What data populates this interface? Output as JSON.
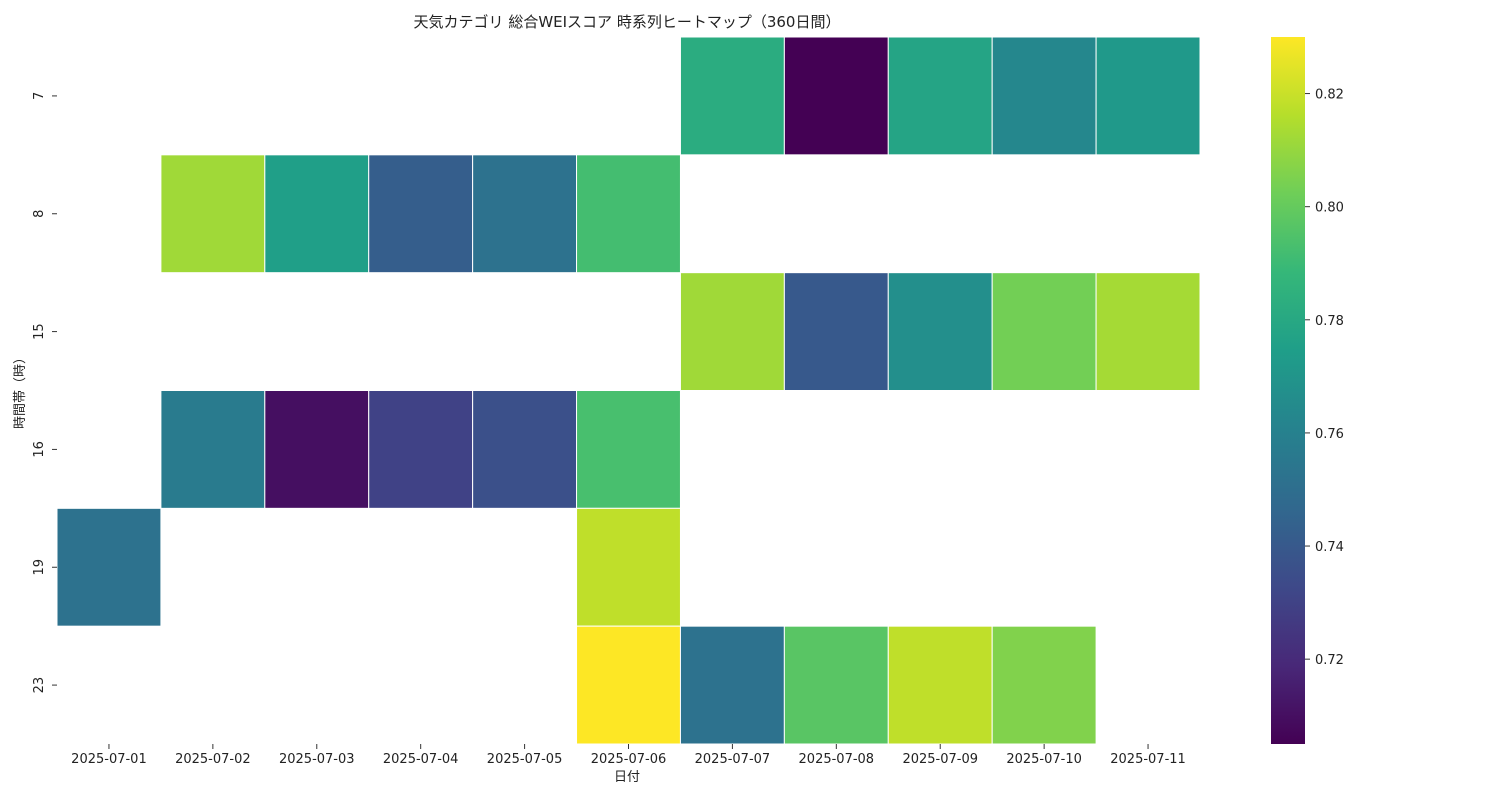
{
  "chart_data": {
    "type": "heatmap",
    "title": "天気カテゴリ 総合WEIスコア 時系列ヒートマップ（360日間）",
    "xlabel": "日付",
    "ylabel": "時間帯（時）",
    "x": [
      "2025-07-01",
      "2025-07-02",
      "2025-07-03",
      "2025-07-04",
      "2025-07-05",
      "2025-07-06",
      "2025-07-07",
      "2025-07-08",
      "2025-07-09",
      "2025-07-10",
      "2025-07-11"
    ],
    "y": [
      "7",
      "8",
      "15",
      "16",
      "19",
      "23"
    ],
    "values": [
      [
        null,
        null,
        null,
        null,
        null,
        null,
        0.782,
        0.705,
        0.778,
        0.763,
        0.772
      ],
      [
        null,
        0.812,
        0.775,
        0.742,
        0.752,
        0.792,
        null,
        null,
        null,
        null,
        null
      ],
      [
        null,
        null,
        null,
        null,
        null,
        null,
        0.812,
        0.74,
        0.767,
        0.803,
        0.813
      ],
      [
        null,
        0.757,
        0.71,
        0.73,
        0.736,
        0.793,
        null,
        null,
        null,
        null,
        null
      ],
      [
        0.752,
        null,
        null,
        null,
        null,
        0.818,
        null,
        null,
        null,
        null,
        null
      ],
      [
        null,
        null,
        null,
        null,
        null,
        0.83,
        0.752,
        0.797,
        0.818,
        0.806,
        null
      ]
    ],
    "colorscale": "viridis",
    "vmin": 0.705,
    "vmax": 0.83,
    "colorbar_ticks": [
      "0.72",
      "0.74",
      "0.76",
      "0.78",
      "0.80",
      "0.82"
    ]
  }
}
